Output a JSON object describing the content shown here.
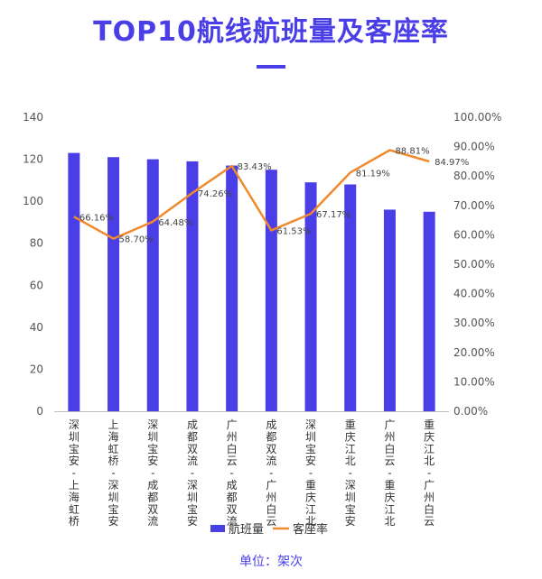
{
  "page": {
    "title": "TOP10航线航班量及客座率",
    "unit_note": "单位：架次"
  },
  "chart_data": {
    "type": "bar",
    "title": "TOP10航线航班量及客座率",
    "categories": [
      "深圳宝安-上海虹桥",
      "上海虹桥-深圳宝安",
      "深圳宝安-成都双流",
      "成都双流-深圳宝安",
      "广州白云-成都双流",
      "成都双流-广州白云",
      "深圳宝安-重庆江北",
      "重庆江北-深圳宝安",
      "广州白云-重庆江北",
      "重庆江北-广州白云"
    ],
    "series": [
      {
        "name": "航班量",
        "type": "bar",
        "axis": "left",
        "color": "#4a3ee6",
        "values": [
          123,
          121,
          120,
          119,
          117,
          115,
          109,
          108,
          96,
          95
        ]
      },
      {
        "name": "客座率",
        "type": "line",
        "axis": "right",
        "color": "#f08a2c",
        "values": [
          66.16,
          58.7,
          64.48,
          74.26,
          83.43,
          61.53,
          67.17,
          81.19,
          88.81,
          84.97
        ],
        "labels": [
          "66.16%",
          "58.70%",
          "64.48%",
          "74.26%",
          "83.43%",
          "61.53%",
          "67.17%",
          "81.19%",
          "88.81%",
          "84.97%"
        ]
      }
    ],
    "y_left": {
      "lim": [
        0,
        140
      ],
      "ticks": [
        "0",
        "20",
        "40",
        "60",
        "80",
        "100",
        "120",
        "140"
      ]
    },
    "y_right": {
      "lim": [
        0,
        100
      ],
      "ticks": [
        "0.00%",
        "10.00%",
        "20.00%",
        "30.00%",
        "40.00%",
        "50.00%",
        "60.00%",
        "70.00%",
        "80.00%",
        "90.00%",
        "100.00%"
      ]
    },
    "grid": false,
    "legend": "bottom"
  }
}
